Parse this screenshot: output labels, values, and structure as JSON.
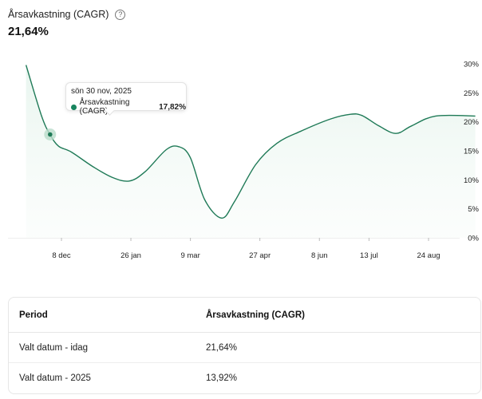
{
  "header": {
    "title": "Årsavkastning (CAGR)",
    "help_symbol": "?",
    "value": "21,64%"
  },
  "tooltip": {
    "date": "sön 30 nov, 2025",
    "series_label": "Årsavkastning (CAGR)",
    "value": "17,82%"
  },
  "table": {
    "headers": [
      "Period",
      "Årsavkastning (CAGR)"
    ],
    "rows": [
      [
        "Valt datum - idag",
        "21,64%"
      ],
      [
        "Valt datum - 2025",
        "13,92%"
      ]
    ]
  },
  "chart_data": {
    "type": "area",
    "x_tick_labels": [
      "8 dec",
      "26 jan",
      "9 mar",
      "27 apr",
      "8 jun",
      "13 jul",
      "24 aug"
    ],
    "y_tick_labels": [
      "30%",
      "25%",
      "20%",
      "15%",
      "10%",
      "5%",
      "0%"
    ],
    "y_ticks": [
      30,
      25,
      20,
      15,
      10,
      5,
      0
    ],
    "ylim": [
      0,
      30
    ],
    "y_unit": "%",
    "grid": false,
    "legend": "none",
    "line_color": "#1f7a57",
    "fill_color": "#eaf6f0",
    "highlight_color": "#b9dcca",
    "series": [
      {
        "values": [
          {
            "x": "2025-11-13",
            "y": 29.8
          },
          {
            "x": "2025-11-24",
            "y": 21.0
          },
          {
            "x": "2025-11-30",
            "y": 17.8
          },
          {
            "x": "2025-12-06",
            "y": 15.8
          },
          {
            "x": "2025-12-15",
            "y": 14.8
          },
          {
            "x": "2025-12-30",
            "y": 12.3
          },
          {
            "x": "2026-01-13",
            "y": 10.4
          },
          {
            "x": "2026-01-25",
            "y": 9.8
          },
          {
            "x": "2026-02-05",
            "y": 11.4
          },
          {
            "x": "2026-02-20",
            "y": 15.2
          },
          {
            "x": "2026-03-01",
            "y": 15.7
          },
          {
            "x": "2026-03-09",
            "y": 13.8
          },
          {
            "x": "2026-03-19",
            "y": 6.6
          },
          {
            "x": "2026-03-31",
            "y": 3.4
          },
          {
            "x": "2026-04-09",
            "y": 6.2
          },
          {
            "x": "2026-04-24",
            "y": 12.6
          },
          {
            "x": "2026-05-09",
            "y": 16.3
          },
          {
            "x": "2026-05-26",
            "y": 18.4
          },
          {
            "x": "2026-06-16",
            "y": 20.5
          },
          {
            "x": "2026-06-30",
            "y": 21.3
          },
          {
            "x": "2026-07-08",
            "y": 21.1
          },
          {
            "x": "2026-07-20",
            "y": 19.3
          },
          {
            "x": "2026-08-01",
            "y": 18.0
          },
          {
            "x": "2026-08-12",
            "y": 19.3
          },
          {
            "x": "2026-08-29",
            "y": 21.0
          },
          {
            "x": "2026-09-26",
            "y": 21.0
          }
        ]
      }
    ],
    "highlight": {
      "x": "2025-11-30",
      "y": 17.82
    }
  }
}
